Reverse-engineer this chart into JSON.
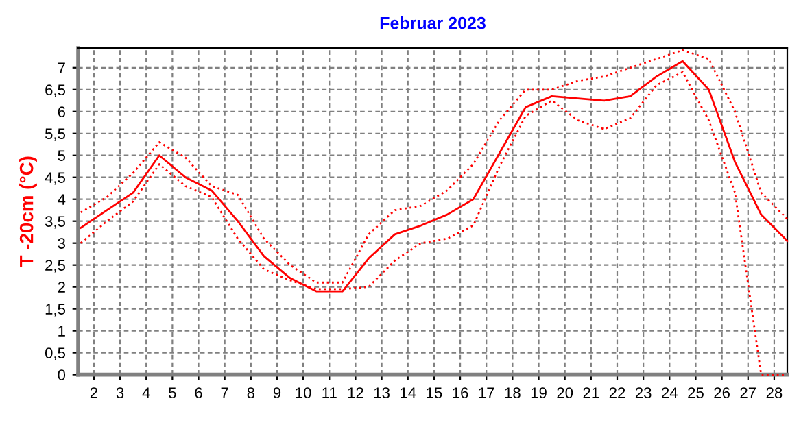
{
  "chart_data": {
    "type": "line",
    "title": "Februar 2023",
    "ylabel": "T -20cm (°C)",
    "x": [
      1.5,
      2.5,
      3.5,
      4.5,
      5.5,
      6.5,
      7.5,
      8.5,
      9.5,
      10.5,
      11.5,
      12.5,
      13.5,
      14.5,
      15.5,
      16.5,
      17.5,
      18.5,
      19.5,
      20.5,
      21.5,
      22.5,
      23.5,
      24.5,
      25.5,
      26.5,
      27.5,
      28.5
    ],
    "series": [
      {
        "color": "#ff0000",
        "line_style": "dotted",
        "values": [
          3.7,
          4.05,
          4.6,
          5.3,
          4.95,
          4.3,
          4.1,
          3.1,
          2.5,
          2.1,
          2.1,
          3.2,
          3.75,
          3.85,
          4.2,
          4.8,
          5.8,
          6.5,
          6.5,
          6.7,
          6.8,
          7.0,
          7.2,
          7.4,
          7.2,
          6.0,
          4.15,
          3.55
        ]
      },
      {
        "color": "#ff0000",
        "line_style": "solid",
        "values": [
          3.35,
          3.75,
          4.15,
          5.0,
          4.5,
          4.2,
          3.5,
          2.7,
          2.2,
          1.9,
          1.9,
          2.65,
          3.2,
          3.4,
          3.65,
          4.0,
          5.05,
          6.1,
          6.35,
          6.3,
          6.25,
          6.35,
          6.8,
          7.15,
          6.5,
          4.85,
          3.65,
          3.05
        ]
      },
      {
        "color": "#ff0000",
        "line_style": "dotted",
        "values": [
          3.0,
          3.5,
          3.95,
          4.8,
          4.3,
          4.05,
          3.1,
          2.4,
          2.15,
          1.95,
          1.95,
          2.0,
          2.6,
          3.0,
          3.1,
          3.4,
          4.75,
          5.9,
          6.25,
          5.8,
          5.6,
          5.85,
          6.6,
          6.9,
          5.8,
          4.15,
          0,
          0
        ]
      }
    ],
    "xlim": [
      1.4,
      28.5
    ],
    "ylim": [
      0,
      7.45
    ],
    "xticks": [
      2,
      3,
      4,
      5,
      6,
      7,
      8,
      9,
      10,
      11,
      12,
      13,
      14,
      15,
      16,
      17,
      18,
      19,
      20,
      21,
      22,
      23,
      24,
      25,
      26,
      27,
      28
    ],
    "yticks": [
      0,
      {
        "value": 0.5,
        "label": "0,5"
      },
      1,
      {
        "value": 1.5,
        "label": "1,5"
      },
      2,
      {
        "value": 2.5,
        "label": "2,5"
      },
      3,
      {
        "value": 3.5,
        "label": "3,5"
      },
      4,
      {
        "value": 4.5,
        "label": "4,5"
      },
      5,
      {
        "value": 5.5,
        "label": "5,5"
      },
      6,
      {
        "value": 6.5,
        "label": "6,5"
      },
      7
    ],
    "grid": true,
    "marker": "none"
  }
}
